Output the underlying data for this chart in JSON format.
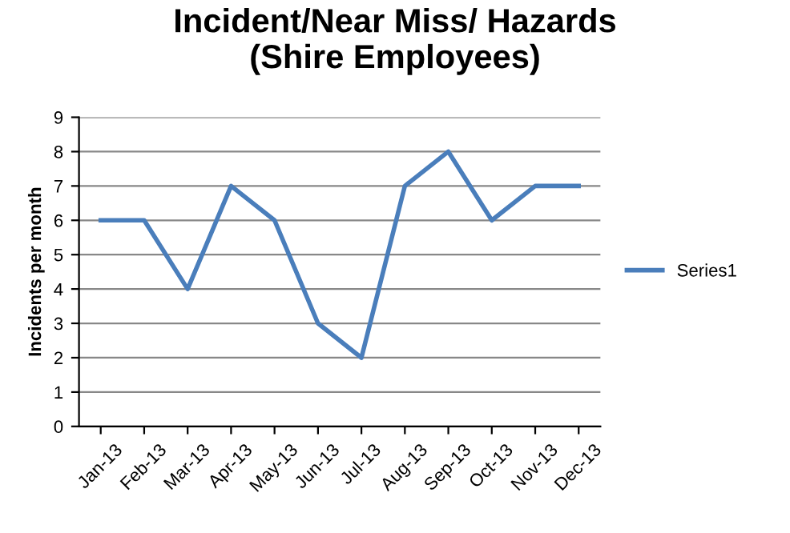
{
  "chart_data": {
    "type": "line",
    "title": "Incident/Near Miss/ Hazards\n(Shire Employees)",
    "ylabel": "Incidents per month",
    "categories": [
      "Jan-13",
      "Feb-13",
      "Mar-13",
      "Apr-13",
      "May-13",
      "Jun-13",
      "Jul-13",
      "Aug-13",
      "Sep-13",
      "Oct-13",
      "Nov-13",
      "Dec-13"
    ],
    "series": [
      {
        "name": "Series1",
        "color": "#4a7ebb",
        "values": [
          6,
          6,
          4,
          7,
          6,
          3,
          2,
          7,
          8,
          6,
          7,
          7
        ]
      }
    ],
    "ylim": [
      0,
      9
    ],
    "yticks": [
      0,
      1,
      2,
      3,
      4,
      5,
      6,
      7,
      8,
      9
    ],
    "grid": "y",
    "legend": "right"
  }
}
